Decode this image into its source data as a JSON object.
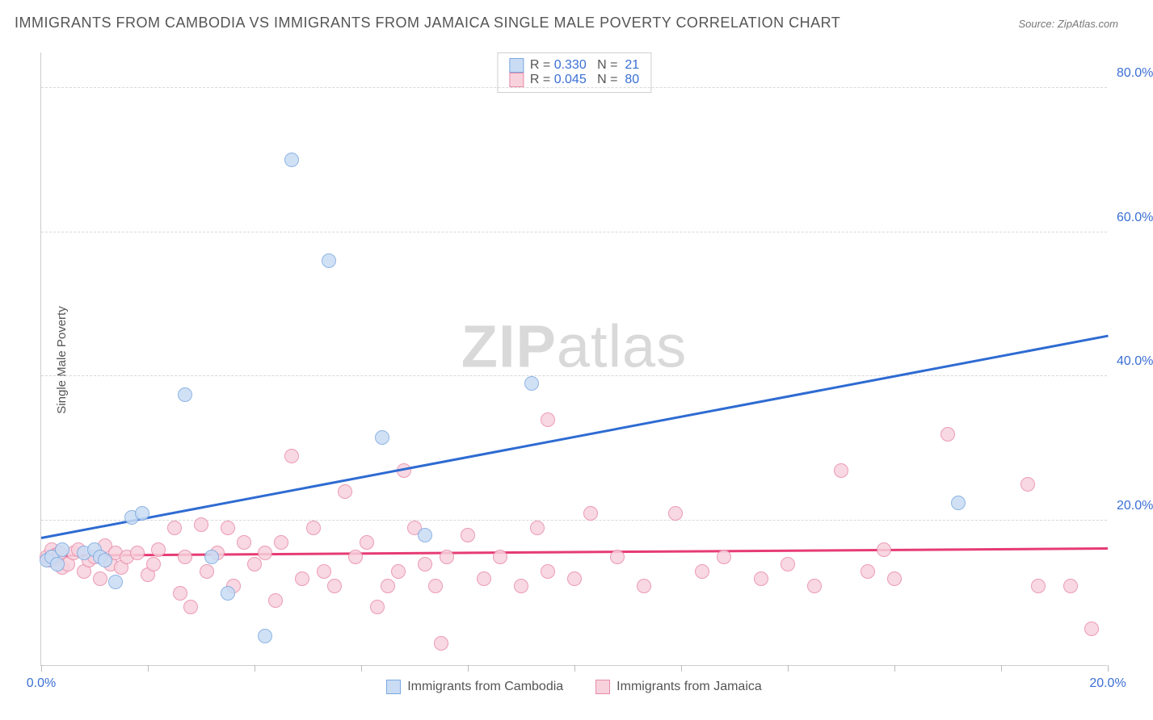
{
  "title": "IMMIGRANTS FROM CAMBODIA VS IMMIGRANTS FROM JAMAICA SINGLE MALE POVERTY CORRELATION CHART",
  "source": "Source: ZipAtlas.com",
  "ylabel": "Single Male Poverty",
  "watermark_left": "ZIP",
  "watermark_right": "atlas",
  "chart": {
    "type": "scatter",
    "xlim": [
      0,
      20
    ],
    "ylim": [
      0,
      85
    ],
    "xtick_positions": [
      0,
      2,
      4,
      6,
      8,
      10,
      12,
      14,
      16,
      18,
      20
    ],
    "xtick_labels": {
      "0": "0.0%",
      "20": "20.0%"
    },
    "ytick_positions": [
      20,
      40,
      60,
      80
    ],
    "ytick_labels": [
      "20.0%",
      "40.0%",
      "60.0%",
      "80.0%"
    ],
    "ytick_color": "#3b6fd4",
    "background_color": "#ffffff",
    "grid_color": "#d8d8d8",
    "marker_radius": 9,
    "marker_stroke_width": 1.5,
    "series": [
      {
        "name": "Immigrants from Cambodia",
        "fill": "#c9dcf4",
        "stroke": "#7aa8e0",
        "R": "0.330",
        "N": "21",
        "trend": {
          "x1": 0,
          "y1": 17.5,
          "x2": 20,
          "y2": 45.5,
          "color": "#2e6bd2",
          "width": 2.5
        },
        "points": [
          [
            0.1,
            14.5
          ],
          [
            0.2,
            15
          ],
          [
            0.3,
            14
          ],
          [
            0.4,
            16
          ],
          [
            0.8,
            15.5
          ],
          [
            1.0,
            16
          ],
          [
            1.1,
            15
          ],
          [
            1.2,
            14.5
          ],
          [
            1.4,
            11.5
          ],
          [
            1.7,
            20.5
          ],
          [
            1.9,
            21
          ],
          [
            2.7,
            37.5
          ],
          [
            3.2,
            15
          ],
          [
            3.5,
            10
          ],
          [
            4.2,
            4
          ],
          [
            4.7,
            70
          ],
          [
            5.4,
            56
          ],
          [
            6.4,
            31.5
          ],
          [
            7.2,
            18
          ],
          [
            9.2,
            39
          ],
          [
            17.2,
            22.5
          ]
        ]
      },
      {
        "name": "Immigrants from Jamaica",
        "fill": "#f7d2dd",
        "stroke": "#e88aa8",
        "R": "0.045",
        "N": "80",
        "trend": {
          "x1": 0,
          "y1": 15,
          "x2": 20,
          "y2": 16,
          "color": "#e63b73",
          "width": 2.5
        },
        "points": [
          [
            0.1,
            15
          ],
          [
            0.15,
            14.5
          ],
          [
            0.2,
            16
          ],
          [
            0.25,
            15.2
          ],
          [
            0.3,
            14.8
          ],
          [
            0.35,
            15.5
          ],
          [
            0.4,
            13.5
          ],
          [
            0.5,
            14
          ],
          [
            0.6,
            15.5
          ],
          [
            0.7,
            16
          ],
          [
            0.8,
            13
          ],
          [
            0.9,
            14.5
          ],
          [
            1.0,
            15
          ],
          [
            1.1,
            12
          ],
          [
            1.2,
            16.5
          ],
          [
            1.3,
            14
          ],
          [
            1.4,
            15.5
          ],
          [
            1.5,
            13.5
          ],
          [
            1.6,
            15
          ],
          [
            1.8,
            15.5
          ],
          [
            2.0,
            12.5
          ],
          [
            2.1,
            14
          ],
          [
            2.2,
            16
          ],
          [
            2.5,
            19
          ],
          [
            2.6,
            10
          ],
          [
            2.7,
            15
          ],
          [
            2.8,
            8
          ],
          [
            3.0,
            19.5
          ],
          [
            3.1,
            13
          ],
          [
            3.3,
            15.5
          ],
          [
            3.5,
            19
          ],
          [
            3.6,
            11
          ],
          [
            3.8,
            17
          ],
          [
            4.0,
            14
          ],
          [
            4.2,
            15.5
          ],
          [
            4.4,
            9
          ],
          [
            4.5,
            17
          ],
          [
            4.7,
            29
          ],
          [
            4.9,
            12
          ],
          [
            5.1,
            19
          ],
          [
            5.3,
            13
          ],
          [
            5.5,
            11
          ],
          [
            5.7,
            24
          ],
          [
            5.9,
            15
          ],
          [
            6.1,
            17
          ],
          [
            6.3,
            8
          ],
          [
            6.5,
            11
          ],
          [
            6.7,
            13
          ],
          [
            6.8,
            27
          ],
          [
            7.0,
            19
          ],
          [
            7.2,
            14
          ],
          [
            7.4,
            11
          ],
          [
            7.5,
            3
          ],
          [
            7.6,
            15
          ],
          [
            8.0,
            18
          ],
          [
            8.3,
            12
          ],
          [
            8.6,
            15
          ],
          [
            9.0,
            11
          ],
          [
            9.3,
            19
          ],
          [
            9.5,
            34
          ],
          [
            9.5,
            13
          ],
          [
            10.0,
            12
          ],
          [
            10.3,
            21
          ],
          [
            10.8,
            15
          ],
          [
            11.3,
            11
          ],
          [
            11.9,
            21
          ],
          [
            12.4,
            13
          ],
          [
            12.8,
            15
          ],
          [
            13.5,
            12
          ],
          [
            14.0,
            14
          ],
          [
            14.5,
            11
          ],
          [
            15.0,
            27
          ],
          [
            15.5,
            13
          ],
          [
            15.8,
            16
          ],
          [
            16.0,
            12
          ],
          [
            17.0,
            32
          ],
          [
            18.5,
            25
          ],
          [
            18.7,
            11
          ],
          [
            19.3,
            11
          ],
          [
            19.7,
            5
          ]
        ]
      }
    ]
  },
  "legend_top": {
    "R_label": "R =",
    "N_label": "N =",
    "value_color": "#3b6fd4",
    "label_color": "#555555"
  }
}
